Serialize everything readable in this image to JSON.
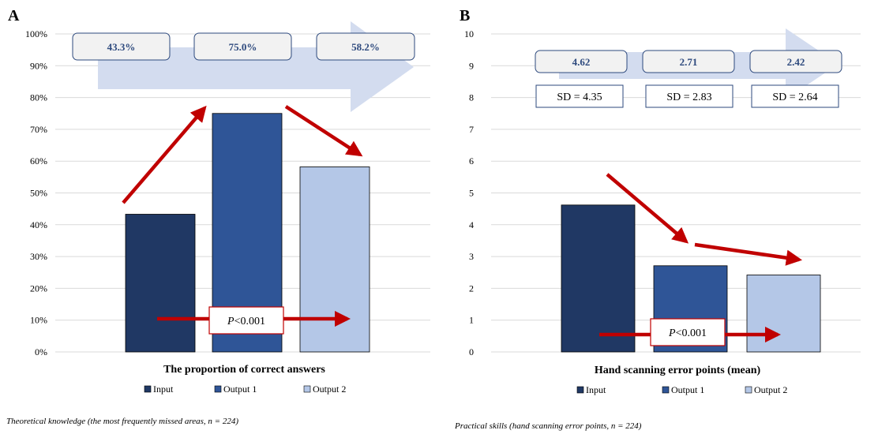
{
  "chart_data": [
    {
      "panel": "A",
      "type": "bar",
      "categories": [
        "Input",
        "Output 1",
        "Output 2"
      ],
      "values": [
        43.3,
        75.0,
        58.2
      ],
      "value_labels": [
        "43.3%",
        "75.0%",
        "58.2%"
      ],
      "ylim": [
        0,
        100
      ],
      "yticks": [
        "0%",
        "10%",
        "20%",
        "30%",
        "40%",
        "50%",
        "60%",
        "70%",
        "80%",
        "90%",
        "100%"
      ],
      "xlabel": "The proportion of correct answers",
      "p_value": "<0.001",
      "p_prefix": "P",
      "caption": "Theoretical knowledge (the most frequently missed areas, n = 224)",
      "grid": true,
      "legend": "bottom"
    },
    {
      "panel": "B",
      "type": "bar",
      "categories": [
        "Input",
        "Output 1",
        "Output 2"
      ],
      "values": [
        4.62,
        2.71,
        2.42
      ],
      "value_labels": [
        "4.62",
        "2.71",
        "2.42"
      ],
      "sd_labels": [
        "SD = 4.35",
        "SD = 2.83",
        "SD = 2.64"
      ],
      "ylim": [
        0,
        10
      ],
      "yticks": [
        "0",
        "1",
        "2",
        "3",
        "4",
        "5",
        "6",
        "7",
        "8",
        "9",
        "10"
      ],
      "xlabel": "Hand scanning error points (mean)",
      "p_value": "<0.001",
      "p_prefix": "P",
      "caption": "Practical skills (hand scanning error points, n = 224)",
      "grid": true,
      "legend": "bottom"
    }
  ],
  "series_colors": [
    "#203864",
    "#2f5597",
    "#b4c7e7"
  ],
  "accent_arrow_color": "#c00000",
  "big_arrow_color": "#d3dcef"
}
